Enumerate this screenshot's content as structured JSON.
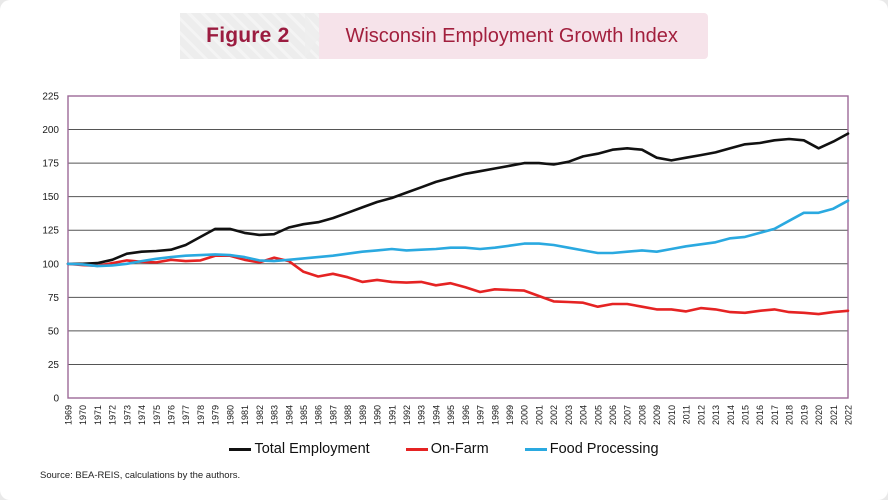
{
  "header": {
    "figure_label": "Figure 2",
    "title": "Wisconsin Employment Growth Index"
  },
  "source": "Source: BEA-REIS, calculations by the authors.",
  "colors": {
    "total_employment": "#111111",
    "on_farm": "#e52323",
    "food_processing": "#2aa9e0",
    "figure_accent": "#9b1c40",
    "title_text": "#a21f3d",
    "header_pink": "#f6e3ea",
    "header_gray": "#ededed",
    "plot_border": "#9c6a98",
    "gridline": "#555555"
  },
  "legend": [
    {
      "label": "Total Employment",
      "color_key": "total_employment"
    },
    {
      "label": "On-Farm",
      "color_key": "on_farm"
    },
    {
      "label": "Food Processing",
      "color_key": "food_processing"
    }
  ],
  "chart_data": {
    "type": "line",
    "title": "Wisconsin Employment Growth Index",
    "xlabel": "",
    "ylabel": "",
    "ylim": [
      0,
      225
    ],
    "yticks": [
      0,
      25,
      50,
      75,
      100,
      125,
      150,
      175,
      200,
      225
    ],
    "grid": "horizontal",
    "legend_position": "bottom",
    "x": [
      1969,
      1970,
      1971,
      1972,
      1973,
      1974,
      1975,
      1976,
      1977,
      1978,
      1979,
      1980,
      1981,
      1982,
      1983,
      1984,
      1985,
      1986,
      1987,
      1988,
      1989,
      1990,
      1991,
      1992,
      1993,
      1994,
      1995,
      1996,
      1997,
      1998,
      1999,
      2000,
      2001,
      2002,
      2003,
      2004,
      2005,
      2006,
      2007,
      2008,
      2009,
      2010,
      2011,
      2012,
      2013,
      2014,
      2015,
      2016,
      2017,
      2018,
      2019,
      2020,
      2021,
      2022
    ],
    "series": [
      {
        "name": "Total Employment",
        "color_key": "total_employment",
        "values": [
          100,
          100,
          100.5,
          103,
          107.5,
          109,
          109.5,
          110.5,
          114,
          120,
          126,
          126,
          123,
          121.5,
          122,
          127,
          129.5,
          131,
          134,
          138,
          142,
          146,
          149,
          153,
          157,
          161,
          164,
          167,
          169,
          171,
          173,
          175,
          175,
          174,
          176,
          180,
          182,
          185,
          186,
          185,
          179,
          177,
          179,
          181,
          183,
          186,
          189,
          190,
          192,
          193,
          192,
          186,
          191,
          197
        ]
      },
      {
        "name": "On-Farm",
        "color_key": "on_farm",
        "values": [
          100,
          99,
          98.5,
          100.5,
          102.5,
          101.5,
          101,
          103,
          102,
          102.5,
          106,
          106,
          103,
          101,
          104.5,
          102,
          94,
          90.5,
          92.5,
          90,
          86.5,
          88,
          86.5,
          86,
          86.5,
          84,
          85.5,
          82.5,
          79,
          81,
          80.5,
          80,
          76,
          72,
          71.5,
          71,
          68,
          70,
          70,
          68,
          66,
          66,
          64.5,
          67,
          66,
          64,
          63.5,
          65,
          66,
          64,
          63.5,
          62.5,
          64,
          65
        ]
      },
      {
        "name": "Food Processing",
        "color_key": "food_processing",
        "values": [
          100,
          99.5,
          98.3,
          98.8,
          100,
          102,
          103.7,
          105,
          106,
          106.5,
          107,
          106.5,
          105,
          102.5,
          102,
          103,
          104,
          105,
          106,
          107.5,
          109,
          110,
          111,
          110,
          110.5,
          111,
          112,
          112,
          111,
          112,
          113.5,
          115,
          115,
          114,
          112,
          110,
          108,
          108,
          109,
          110,
          109,
          111,
          113,
          114.5,
          116,
          119,
          120,
          123,
          126,
          132,
          138,
          138,
          141,
          147
        ]
      }
    ]
  }
}
